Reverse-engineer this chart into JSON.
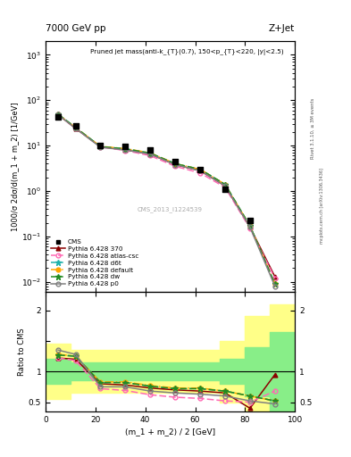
{
  "title_top": "7000 GeV pp",
  "title_right": "Z+Jet",
  "plot_title": "Pruned jet mass(anti-k_{T}(0.7), 150<p_{T}<220, |y|<2.5)",
  "xlabel": "(m_1 + m_2) / 2 [GeV]",
  "ylabel_main": "1000/σ 2dσ/d(m_1 + m_2) [1/GeV]",
  "ylabel_ratio": "Ratio to CMS",
  "watermark": "CMS_2013_I1224539",
  "rivet_label": "Rivet 3.1.10, ≥ 3M events",
  "arxiv_label": "mcplots.cern.ch [arXiv:1306.3436]",
  "x_data": [
    5,
    12,
    22,
    32,
    42,
    52,
    62,
    72,
    82,
    92
  ],
  "cms_data": [
    42,
    27,
    10,
    9.5,
    8.0,
    4.5,
    3.0,
    1.1,
    0.22,
    null
  ],
  "p370_data": [
    48,
    24,
    9.5,
    8.0,
    6.5,
    3.8,
    2.8,
    1.3,
    0.16,
    0.013
  ],
  "atlas_csc_data": [
    48,
    24,
    9.3,
    7.8,
    6.0,
    3.5,
    2.5,
    1.2,
    0.15,
    0.012
  ],
  "d6t_data": [
    49,
    25,
    9.5,
    8.5,
    6.8,
    4.0,
    3.0,
    1.4,
    0.17,
    0.009
  ],
  "default_data": [
    49,
    25,
    9.6,
    8.6,
    6.9,
    4.0,
    3.0,
    1.4,
    0.17,
    0.009
  ],
  "dw_data": [
    49,
    25,
    9.5,
    8.5,
    6.8,
    4.0,
    3.0,
    1.4,
    0.17,
    0.009
  ],
  "p0_data": [
    48,
    24,
    9.2,
    8.0,
    6.5,
    3.8,
    2.8,
    1.3,
    0.16,
    0.008
  ],
  "ratio_p370": [
    1.22,
    1.2,
    0.8,
    0.78,
    0.73,
    0.7,
    0.68,
    0.65,
    0.4,
    0.95
  ],
  "ratio_atlas_csc": [
    1.22,
    1.18,
    0.72,
    0.69,
    0.62,
    0.58,
    0.56,
    0.52,
    0.5,
    0.68
  ],
  "ratio_d6t": [
    1.27,
    1.25,
    0.82,
    0.82,
    0.76,
    0.72,
    0.72,
    0.68,
    0.6,
    0.52
  ],
  "ratio_default": [
    1.28,
    1.25,
    0.83,
    0.83,
    0.77,
    0.73,
    0.73,
    0.68,
    0.6,
    0.52
  ],
  "ratio_dw": [
    1.27,
    1.25,
    0.82,
    0.82,
    0.76,
    0.72,
    0.72,
    0.68,
    0.6,
    0.52
  ],
  "ratio_p0": [
    1.35,
    1.28,
    0.75,
    0.75,
    0.68,
    0.65,
    0.63,
    0.6,
    0.52,
    0.47
  ],
  "band_x_edges": [
    0,
    10,
    20,
    30,
    40,
    50,
    60,
    70,
    80,
    90,
    100
  ],
  "band_inner_half": [
    0.2,
    0.15,
    0.15,
    0.15,
    0.15,
    0.15,
    0.15,
    0.2,
    0.4,
    0.65
  ],
  "band_outer_half": [
    0.45,
    0.35,
    0.35,
    0.35,
    0.35,
    0.35,
    0.35,
    0.5,
    0.9,
    1.1
  ],
  "color_p370": "#8B0000",
  "color_atlas_csc": "#FF69B4",
  "color_d6t": "#20B2AA",
  "color_default": "#FFA500",
  "color_dw": "#228B22",
  "color_p0": "#808080",
  "color_cms": "#000000",
  "ylim_main": [
    0.006,
    2000
  ],
  "ylim_ratio": [
    0.35,
    2.3
  ],
  "xlim": [
    0,
    100
  ]
}
